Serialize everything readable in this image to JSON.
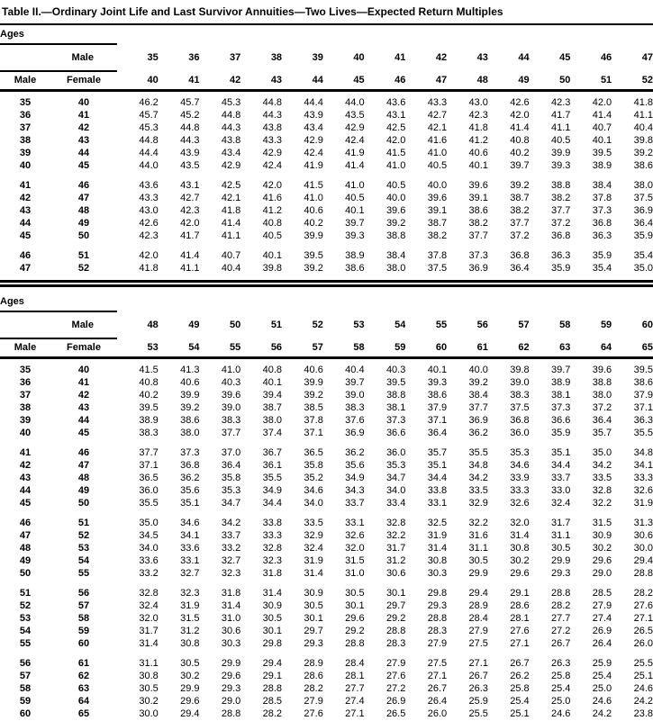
{
  "title": "Table II.—Ordinary Joint Life and Last Survivor Annuities—Two Lives—Expected Return Multiples",
  "header_labels": {
    "ages": "Ages",
    "male": "Male",
    "female": "Female"
  },
  "tables": [
    {
      "male_ages": [
        "35",
        "36",
        "37",
        "38",
        "39",
        "40",
        "41",
        "42",
        "43",
        "44",
        "45",
        "46",
        "47"
      ],
      "female_ages": [
        "40",
        "41",
        "42",
        "43",
        "44",
        "45",
        "46",
        "47",
        "48",
        "49",
        "50",
        "51",
        "52"
      ],
      "row_groups": [
        {
          "rows": [
            {
              "male": "35",
              "female": "40",
              "values": [
                "46.2",
                "45.7",
                "45.3",
                "44.8",
                "44.4",
                "44.0",
                "43.6",
                "43.3",
                "43.0",
                "42.6",
                "42.3",
                "42.0",
                "41.8"
              ]
            },
            {
              "male": "36",
              "female": "41",
              "values": [
                "45.7",
                "45.2",
                "44.8",
                "44.3",
                "43.9",
                "43.5",
                "43.1",
                "42.7",
                "42.3",
                "42.0",
                "41.7",
                "41.4",
                "41.1"
              ]
            },
            {
              "male": "37",
              "female": "42",
              "values": [
                "45.3",
                "44.8",
                "44.3",
                "43.8",
                "43.4",
                "42.9",
                "42.5",
                "42.1",
                "41.8",
                "41.4",
                "41.1",
                "40.7",
                "40.4"
              ]
            },
            {
              "male": "38",
              "female": "43",
              "values": [
                "44.8",
                "44.3",
                "43.8",
                "43.3",
                "42.9",
                "42.4",
                "42.0",
                "41.6",
                "41.2",
                "40.8",
                "40.5",
                "40.1",
                "39.8"
              ]
            },
            {
              "male": "39",
              "female": "44",
              "values": [
                "44.4",
                "43.9",
                "43.4",
                "42.9",
                "42.4",
                "41.9",
                "41.5",
                "41.0",
                "40.6",
                "40.2",
                "39.9",
                "39.5",
                "39.2"
              ]
            },
            {
              "male": "40",
              "female": "45",
              "values": [
                "44.0",
                "43.5",
                "42.9",
                "42.4",
                "41.9",
                "41.4",
                "41.0",
                "40.5",
                "40.1",
                "39.7",
                "39.3",
                "38.9",
                "38.6"
              ]
            }
          ]
        },
        {
          "rows": [
            {
              "male": "41",
              "female": "46",
              "values": [
                "43.6",
                "43.1",
                "42.5",
                "42.0",
                "41.5",
                "41.0",
                "40.5",
                "40.0",
                "39.6",
                "39.2",
                "38.8",
                "38.4",
                "38.0"
              ]
            },
            {
              "male": "42",
              "female": "47",
              "values": [
                "43.3",
                "42.7",
                "42.1",
                "41.6",
                "41.0",
                "40.5",
                "40.0",
                "39.6",
                "39.1",
                "38.7",
                "38.2",
                "37.8",
                "37.5"
              ]
            },
            {
              "male": "43",
              "female": "48",
              "values": [
                "43.0",
                "42.3",
                "41.8",
                "41.2",
                "40.6",
                "40.1",
                "39.6",
                "39.1",
                "38.6",
                "38.2",
                "37.7",
                "37.3",
                "36.9"
              ]
            },
            {
              "male": "44",
              "female": "49",
              "values": [
                "42.6",
                "42.0",
                "41.4",
                "40.8",
                "40.2",
                "39.7",
                "39.2",
                "38.7",
                "38.2",
                "37.7",
                "37.2",
                "36.8",
                "36.4"
              ]
            },
            {
              "male": "45",
              "female": "50",
              "values": [
                "42.3",
                "41.7",
                "41.1",
                "40.5",
                "39.9",
                "39.3",
                "38.8",
                "38.2",
                "37.7",
                "37.2",
                "36.8",
                "36.3",
                "35.9"
              ]
            }
          ]
        },
        {
          "rows": [
            {
              "male": "46",
              "female": "51",
              "values": [
                "42.0",
                "41.4",
                "40.7",
                "40.1",
                "39.5",
                "38.9",
                "38.4",
                "37.8",
                "37.3",
                "36.8",
                "36.3",
                "35.9",
                "35.4"
              ]
            },
            {
              "male": "47",
              "female": "52",
              "values": [
                "41.8",
                "41.1",
                "40.4",
                "39.8",
                "39.2",
                "38.6",
                "38.0",
                "37.5",
                "36.9",
                "36.4",
                "35.9",
                "35.4",
                "35.0"
              ]
            }
          ]
        }
      ]
    },
    {
      "male_ages": [
        "48",
        "49",
        "50",
        "51",
        "52",
        "53",
        "54",
        "55",
        "56",
        "57",
        "58",
        "59",
        "60"
      ],
      "female_ages": [
        "53",
        "54",
        "55",
        "56",
        "57",
        "58",
        "59",
        "60",
        "61",
        "62",
        "63",
        "64",
        "65"
      ],
      "row_groups": [
        {
          "rows": [
            {
              "male": "35",
              "female": "40",
              "values": [
                "41.5",
                "41.3",
                "41.0",
                "40.8",
                "40.6",
                "40.4",
                "40.3",
                "40.1",
                "40.0",
                "39.8",
                "39.7",
                "39.6",
                "39.5"
              ]
            },
            {
              "male": "36",
              "female": "41",
              "values": [
                "40.8",
                "40.6",
                "40.3",
                "40.1",
                "39.9",
                "39.7",
                "39.5",
                "39.3",
                "39.2",
                "39.0",
                "38.9",
                "38.8",
                "38.6"
              ]
            },
            {
              "male": "37",
              "female": "42",
              "values": [
                "40.2",
                "39.9",
                "39.6",
                "39.4",
                "39.2",
                "39.0",
                "38.8",
                "38.6",
                "38.4",
                "38.3",
                "38.1",
                "38.0",
                "37.9"
              ]
            },
            {
              "male": "38",
              "female": "43",
              "values": [
                "39.5",
                "39.2",
                "39.0",
                "38.7",
                "38.5",
                "38.3",
                "38.1",
                "37.9",
                "37.7",
                "37.5",
                "37.3",
                "37.2",
                "37.1"
              ]
            },
            {
              "male": "39",
              "female": "44",
              "values": [
                "38.9",
                "38.6",
                "38.3",
                "38.0",
                "37.8",
                "37.6",
                "37.3",
                "37.1",
                "36.9",
                "36.8",
                "36.6",
                "36.4",
                "36.3"
              ]
            },
            {
              "male": "40",
              "female": "45",
              "values": [
                "38.3",
                "38.0",
                "37.7",
                "37.4",
                "37.1",
                "36.9",
                "36.6",
                "36.4",
                "36.2",
                "36.0",
                "35.9",
                "35.7",
                "35.5"
              ]
            }
          ]
        },
        {
          "rows": [
            {
              "male": "41",
              "female": "46",
              "values": [
                "37.7",
                "37.3",
                "37.0",
                "36.7",
                "36.5",
                "36.2",
                "36.0",
                "35.7",
                "35.5",
                "35.3",
                "35.1",
                "35.0",
                "34.8"
              ]
            },
            {
              "male": "42",
              "female": "47",
              "values": [
                "37.1",
                "36.8",
                "36.4",
                "36.1",
                "35.8",
                "35.6",
                "35.3",
                "35.1",
                "34.8",
                "34.6",
                "34.4",
                "34.2",
                "34.1"
              ]
            },
            {
              "male": "43",
              "female": "48",
              "values": [
                "36.5",
                "36.2",
                "35.8",
                "35.5",
                "35.2",
                "34.9",
                "34.7",
                "34.4",
                "34.2",
                "33.9",
                "33.7",
                "33.5",
                "33.3"
              ]
            },
            {
              "male": "44",
              "female": "49",
              "values": [
                "36.0",
                "35.6",
                "35.3",
                "34.9",
                "34.6",
                "34.3",
                "34.0",
                "33.8",
                "33.5",
                "33.3",
                "33.0",
                "32.8",
                "32.6"
              ]
            },
            {
              "male": "45",
              "female": "50",
              "values": [
                "35.5",
                "35.1",
                "34.7",
                "34.4",
                "34.0",
                "33.7",
                "33.4",
                "33.1",
                "32.9",
                "32.6",
                "32.4",
                "32.2",
                "31.9"
              ]
            }
          ]
        },
        {
          "rows": [
            {
              "male": "46",
              "female": "51",
              "values": [
                "35.0",
                "34.6",
                "34.2",
                "33.8",
                "33.5",
                "33.1",
                "32.8",
                "32.5",
                "32.2",
                "32.0",
                "31.7",
                "31.5",
                "31.3"
              ]
            },
            {
              "male": "47",
              "female": "52",
              "values": [
                "34.5",
                "34.1",
                "33.7",
                "33.3",
                "32.9",
                "32.6",
                "32.2",
                "31.9",
                "31.6",
                "31.4",
                "31.1",
                "30.9",
                "30.6"
              ]
            },
            {
              "male": "48",
              "female": "53",
              "values": [
                "34.0",
                "33.6",
                "33.2",
                "32.8",
                "32.4",
                "32.0",
                "31.7",
                "31.4",
                "31.1",
                "30.8",
                "30.5",
                "30.2",
                "30.0"
              ]
            },
            {
              "male": "49",
              "female": "54",
              "values": [
                "33.6",
                "33.1",
                "32.7",
                "32.3",
                "31.9",
                "31.5",
                "31.2",
                "30.8",
                "30.5",
                "30.2",
                "29.9",
                "29.6",
                "29.4"
              ]
            },
            {
              "male": "50",
              "female": "55",
              "values": [
                "33.2",
                "32.7",
                "32.3",
                "31.8",
                "31.4",
                "31.0",
                "30.6",
                "30.3",
                "29.9",
                "29.6",
                "29.3",
                "29.0",
                "28.8"
              ]
            }
          ]
        },
        {
          "rows": [
            {
              "male": "51",
              "female": "56",
              "values": [
                "32.8",
                "32.3",
                "31.8",
                "31.4",
                "30.9",
                "30.5",
                "30.1",
                "29.8",
                "29.4",
                "29.1",
                "28.8",
                "28.5",
                "28.2"
              ]
            },
            {
              "male": "52",
              "female": "57",
              "values": [
                "32.4",
                "31.9",
                "31.4",
                "30.9",
                "30.5",
                "30.1",
                "29.7",
                "29.3",
                "28.9",
                "28.6",
                "28.2",
                "27.9",
                "27.6"
              ]
            },
            {
              "male": "53",
              "female": "58",
              "values": [
                "32.0",
                "31.5",
                "31.0",
                "30.5",
                "30.1",
                "29.6",
                "29.2",
                "28.8",
                "28.4",
                "28.1",
                "27.7",
                "27.4",
                "27.1"
              ]
            },
            {
              "male": "54",
              "female": "59",
              "values": [
                "31.7",
                "31.2",
                "30.6",
                "30.1",
                "29.7",
                "29.2",
                "28.8",
                "28.3",
                "27.9",
                "27.6",
                "27.2",
                "26.9",
                "26.5"
              ]
            },
            {
              "male": "55",
              "female": "60",
              "values": [
                "31.4",
                "30.8",
                "30.3",
                "29.8",
                "29.3",
                "28.8",
                "28.3",
                "27.9",
                "27.5",
                "27.1",
                "26.7",
                "26.4",
                "26.0"
              ]
            }
          ]
        },
        {
          "rows": [
            {
              "male": "56",
              "female": "61",
              "values": [
                "31.1",
                "30.5",
                "29.9",
                "29.4",
                "28.9",
                "28.4",
                "27.9",
                "27.5",
                "27.1",
                "26.7",
                "26.3",
                "25.9",
                "25.5"
              ]
            },
            {
              "male": "57",
              "female": "62",
              "values": [
                "30.8",
                "30.2",
                "29.6",
                "29.1",
                "28.6",
                "28.1",
                "27.6",
                "27.1",
                "26.7",
                "26.2",
                "25.8",
                "25.4",
                "25.1"
              ]
            },
            {
              "male": "58",
              "female": "63",
              "values": [
                "30.5",
                "29.9",
                "29.3",
                "28.8",
                "28.2",
                "27.7",
                "27.2",
                "26.7",
                "26.3",
                "25.8",
                "25.4",
                "25.0",
                "24.6"
              ]
            },
            {
              "male": "59",
              "female": "64",
              "values": [
                "30.2",
                "29.6",
                "29.0",
                "28.5",
                "27.9",
                "27.4",
                "26.9",
                "26.4",
                "25.9",
                "25.4",
                "25.0",
                "24.6",
                "24.2"
              ]
            },
            {
              "male": "60",
              "female": "65",
              "values": [
                "30.0",
                "29.4",
                "28.8",
                "28.2",
                "27.6",
                "27.1",
                "26.5",
                "26.0",
                "25.5",
                "25.1",
                "24.6",
                "24.2",
                "23.8"
              ]
            }
          ]
        }
      ]
    }
  ]
}
